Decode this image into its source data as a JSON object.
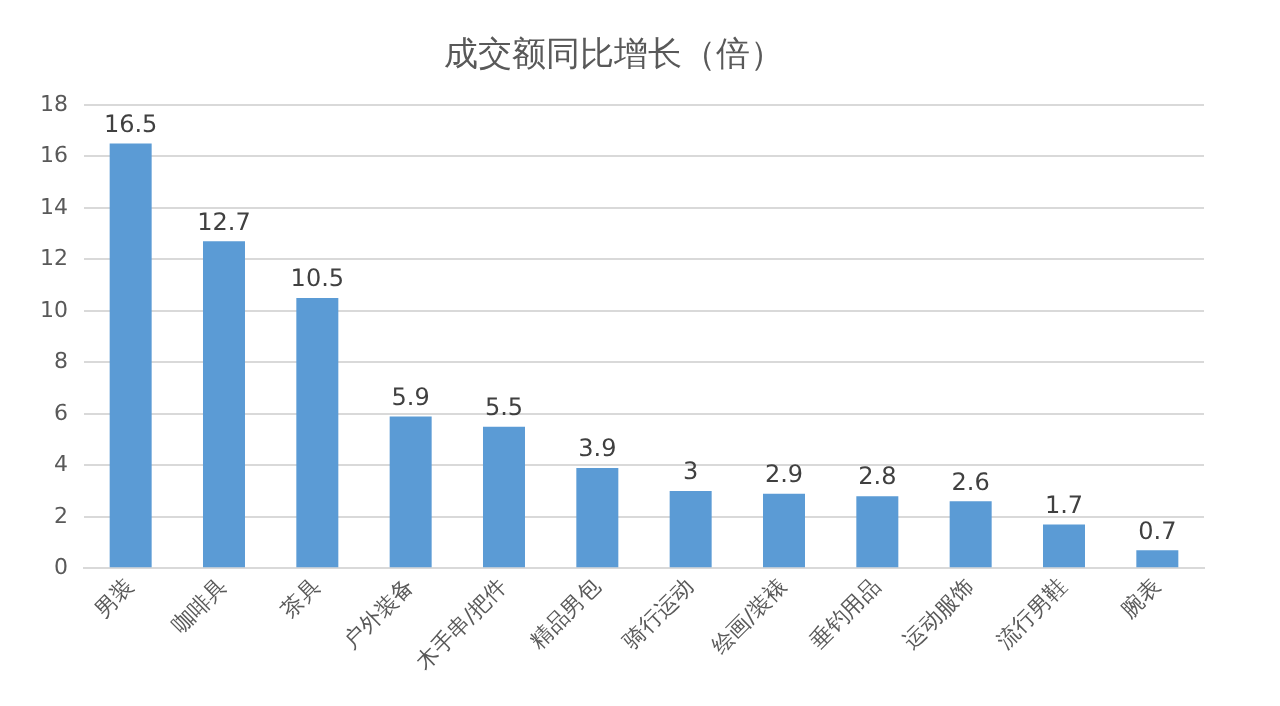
{
  "chart_data": {
    "type": "bar",
    "title": "成交额同比增长（倍）",
    "categories": [
      "男装",
      "咖啡具",
      "茶具",
      "户外装备",
      "木手串/把件",
      "精品男包",
      "骑行运动",
      "绘画/装裱",
      "垂钓用品",
      "运动服饰",
      "流行男鞋",
      "腕表"
    ],
    "values": [
      16.5,
      12.7,
      10.5,
      5.9,
      5.5,
      3.9,
      3,
      2.9,
      2.8,
      2.6,
      1.7,
      0.7
    ],
    "color": "#5b9bd5",
    "ylim": [
      0,
      18
    ],
    "yticks": [
      0,
      2,
      4,
      6,
      8,
      10,
      12,
      14,
      16,
      18
    ],
    "grid": "y",
    "data_labels": true
  }
}
